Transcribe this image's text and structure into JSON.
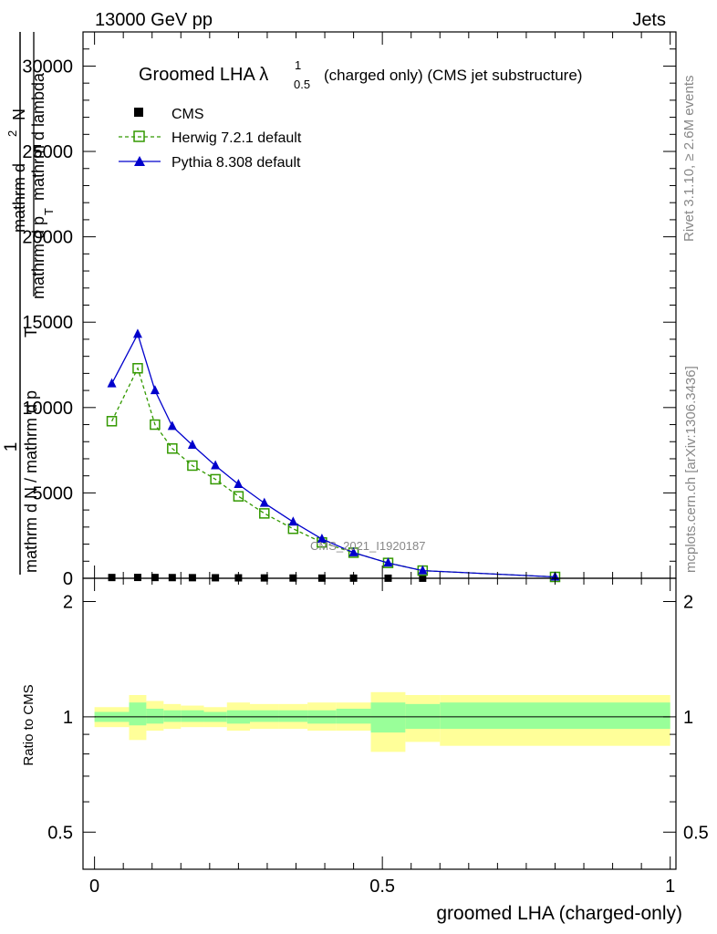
{
  "header": {
    "left": "13000 GeV pp",
    "right": "Jets"
  },
  "side_labels": {
    "rivet": "Rivet 3.1.10, ≥ 2.6M events",
    "mcplots": "mcplots.cern.ch [arXiv:1306.3436]"
  },
  "chart_data": [
    {
      "type": "line",
      "title": "Groomed LHA λ",
      "title_sup": "1",
      "title_sub": "0.5",
      "title_suffix": "(charged only) (CMS jet substructure)",
      "ylabel": "1 / mathrm d N / mathrm d p_T mathrm d^2N / mathrm d p_T mathrm d lambda",
      "ylabel_parts": {
        "one": "1",
        "denominator": "mathrm d N / mathrm d p",
        "numerator_1": "mathrm d",
        "numerator_2": "N",
        "numerator_3": "mathrm d p",
        "numerator_4": "mathrm d lambda",
        "sub_t": "T",
        "sup_2": "2"
      },
      "analysis_label": "CMS_2021_I1920187",
      "ylim": [
        0,
        32000
      ],
      "y_ticks": [
        0,
        5000,
        10000,
        15000,
        20000,
        25000,
        30000
      ],
      "y_tick_labels": [
        "0",
        "5000",
        "10000",
        "15000",
        "20000",
        "25000",
        "30000"
      ],
      "xlim": [
        -0.02,
        1.01
      ],
      "legend_placement": "top-left",
      "series": [
        {
          "name": "CMS",
          "color": "#000000",
          "marker": "square-filled",
          "x": [
            0.03,
            0.075,
            0.105,
            0.135,
            0.17,
            0.21,
            0.25,
            0.295,
            0.345,
            0.395,
            0.45,
            0.51,
            0.57
          ],
          "y": [
            45,
            50,
            45,
            40,
            35,
            30,
            25,
            20,
            15,
            10,
            8,
            5,
            3
          ]
        },
        {
          "name": "Herwig 7.2.1 default",
          "color": "#339900",
          "marker": "square-open",
          "line": "dashed",
          "x": [
            0.03,
            0.075,
            0.105,
            0.135,
            0.17,
            0.21,
            0.25,
            0.295,
            0.345,
            0.395,
            0.45,
            0.51,
            0.57,
            0.8
          ],
          "y": [
            9200,
            12300,
            9000,
            7600,
            6600,
            5800,
            4800,
            3800,
            2900,
            2100,
            1500,
            900,
            450,
            80
          ]
        },
        {
          "name": "Pythia 8.308 default",
          "color": "#0000cc",
          "marker": "triangle-filled",
          "line": "solid",
          "x": [
            0.03,
            0.075,
            0.105,
            0.135,
            0.17,
            0.21,
            0.25,
            0.295,
            0.345,
            0.395,
            0.45,
            0.51,
            0.57,
            0.8
          ],
          "y": [
            11400,
            14300,
            11000,
            8900,
            7800,
            6600,
            5500,
            4400,
            3300,
            2300,
            1500,
            900,
            450,
            80
          ]
        }
      ]
    },
    {
      "type": "area",
      "ylabel": "Ratio to CMS",
      "xlabel": "groomed LHA (charged-only)",
      "xlim": [
        -0.02,
        1.01
      ],
      "ylim": [
        0.4,
        2.3
      ],
      "x_ticks": [
        0,
        0.5,
        1
      ],
      "x_tick_labels": [
        "0",
        "0.5",
        "1"
      ],
      "y_ticks": [
        0.5,
        1,
        2
      ],
      "y_tick_labels": [
        "0.5",
        "1",
        "2"
      ],
      "reference_line": 1,
      "bins": [
        {
          "lo": 0.0,
          "hi": 0.06,
          "inner": [
            0.97,
            1.03
          ],
          "outer": [
            0.94,
            1.06
          ]
        },
        {
          "lo": 0.06,
          "hi": 0.09,
          "inner": [
            0.95,
            1.09
          ],
          "outer": [
            0.87,
            1.14
          ]
        },
        {
          "lo": 0.09,
          "hi": 0.12,
          "inner": [
            0.96,
            1.05
          ],
          "outer": [
            0.92,
            1.1
          ]
        },
        {
          "lo": 0.12,
          "hi": 0.15,
          "inner": [
            0.97,
            1.04
          ],
          "outer": [
            0.93,
            1.08
          ]
        },
        {
          "lo": 0.15,
          "hi": 0.19,
          "inner": [
            0.97,
            1.04
          ],
          "outer": [
            0.94,
            1.07
          ]
        },
        {
          "lo": 0.19,
          "hi": 0.23,
          "inner": [
            0.97,
            1.03
          ],
          "outer": [
            0.94,
            1.06
          ]
        },
        {
          "lo": 0.23,
          "hi": 0.27,
          "inner": [
            0.96,
            1.04
          ],
          "outer": [
            0.92,
            1.09
          ]
        },
        {
          "lo": 0.27,
          "hi": 0.32,
          "inner": [
            0.97,
            1.04
          ],
          "outer": [
            0.93,
            1.08
          ]
        },
        {
          "lo": 0.32,
          "hi": 0.37,
          "inner": [
            0.97,
            1.04
          ],
          "outer": [
            0.93,
            1.08
          ]
        },
        {
          "lo": 0.37,
          "hi": 0.42,
          "inner": [
            0.96,
            1.04
          ],
          "outer": [
            0.92,
            1.09
          ]
        },
        {
          "lo": 0.42,
          "hi": 0.48,
          "inner": [
            0.96,
            1.05
          ],
          "outer": [
            0.92,
            1.09
          ]
        },
        {
          "lo": 0.48,
          "hi": 0.54,
          "inner": [
            0.91,
            1.09
          ],
          "outer": [
            0.81,
            1.16
          ]
        },
        {
          "lo": 0.54,
          "hi": 0.6,
          "inner": [
            0.93,
            1.08
          ],
          "outer": [
            0.86,
            1.14
          ]
        },
        {
          "lo": 0.6,
          "hi": 1.0,
          "inner": [
            0.93,
            1.09
          ],
          "outer": [
            0.84,
            1.14
          ]
        }
      ],
      "band_colors": {
        "inner": "#99ff99",
        "outer": "#ffff99"
      }
    }
  ]
}
